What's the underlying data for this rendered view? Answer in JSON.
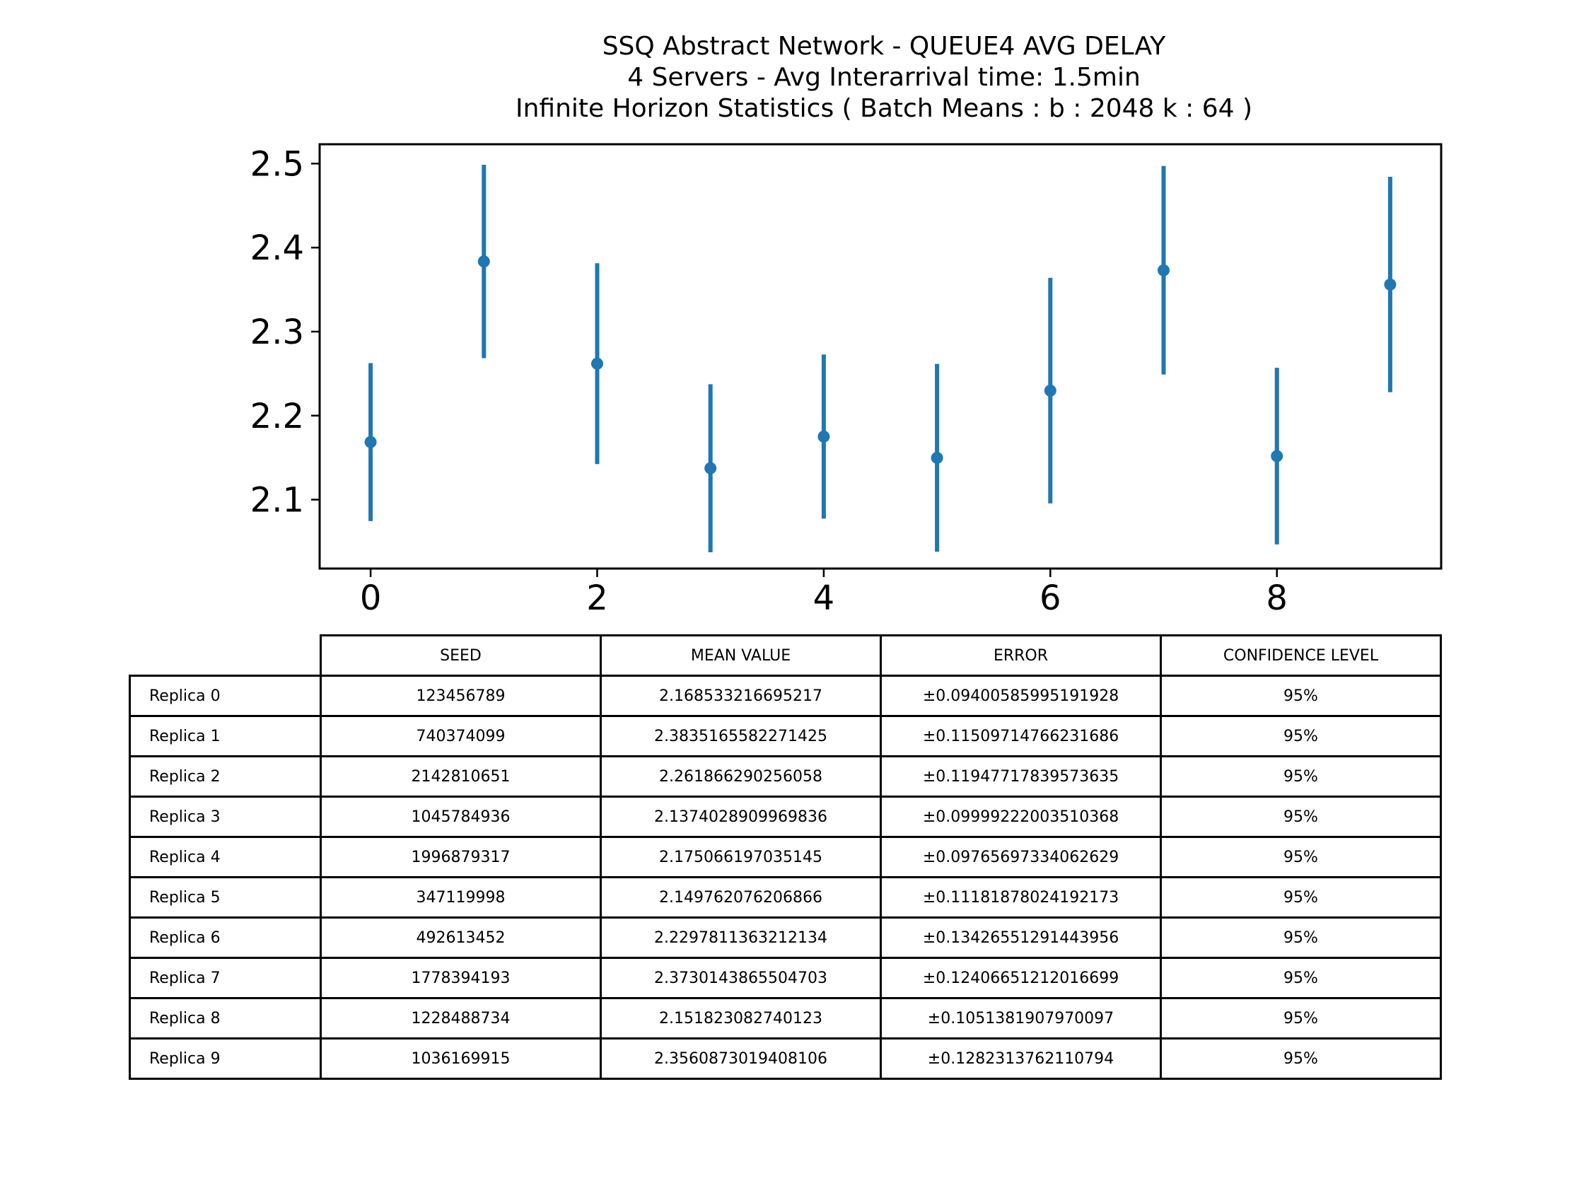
{
  "chart_data": {
    "type": "scatter",
    "title_lines": [
      "SSQ Abstract Network - QUEUE4 AVG DELAY",
      "4 Servers -  Avg Interarrival time: 1.5min",
      "Infinite Horizon Statistics ( Batch Means : b : 2048  k : 64 )"
    ],
    "x": [
      0,
      1,
      2,
      3,
      4,
      5,
      6,
      7,
      8,
      9
    ],
    "y": [
      2.168533216695217,
      2.3835165582271425,
      2.261866290256058,
      2.1374028909969836,
      2.175066197035145,
      2.149762076206866,
      2.2297811363212134,
      2.3730143865504703,
      2.151823082740123,
      2.3560873019408106
    ],
    "yerr": [
      0.09400585995191928,
      0.11509714766231686,
      0.11947717839573635,
      0.09999222003510368,
      0.09765697334062629,
      0.11181878024192173,
      0.13426551291443956,
      0.12406651212016699,
      0.1051381907970097,
      0.1282313762110794
    ],
    "xlim": [
      -0.45,
      9.45
    ],
    "ylim": [
      2.018,
      2.523
    ],
    "xticks": [
      0,
      2,
      4,
      6,
      8
    ],
    "yticks": [
      2.1,
      2.2,
      2.3,
      2.4,
      2.5
    ],
    "xtick_labels": [
      "0",
      "2",
      "4",
      "6",
      "8"
    ],
    "ytick_labels": [
      "2.1",
      "2.2",
      "2.3",
      "2.4",
      "2.5"
    ],
    "series_color": "#1f77b4",
    "grid": false,
    "xlabel": "",
    "ylabel": ""
  },
  "table": {
    "columns": [
      "SEED",
      "MEAN VALUE",
      "ERROR",
      "CONFIDENCE LEVEL"
    ],
    "rows": [
      {
        "label": "Replica 0",
        "seed": "123456789",
        "mean": "2.168533216695217",
        "error": "±0.09400585995191928",
        "confidence": "95%"
      },
      {
        "label": "Replica 1",
        "seed": "740374099",
        "mean": "2.3835165582271425",
        "error": "±0.11509714766231686",
        "confidence": "95%"
      },
      {
        "label": "Replica 2",
        "seed": "2142810651",
        "mean": "2.261866290256058",
        "error": "±0.11947717839573635",
        "confidence": "95%"
      },
      {
        "label": "Replica 3",
        "seed": "1045784936",
        "mean": "2.1374028909969836",
        "error": "±0.09999222003510368",
        "confidence": "95%"
      },
      {
        "label": "Replica 4",
        "seed": "1996879317",
        "mean": "2.175066197035145",
        "error": "±0.09765697334062629",
        "confidence": "95%"
      },
      {
        "label": "Replica 5",
        "seed": "347119998",
        "mean": "2.149762076206866",
        "error": "±0.11181878024192173",
        "confidence": "95%"
      },
      {
        "label": "Replica 6",
        "seed": "492613452",
        "mean": "2.2297811363212134",
        "error": "±0.13426551291443956",
        "confidence": "95%"
      },
      {
        "label": "Replica 7",
        "seed": "1778394193",
        "mean": "2.3730143865504703",
        "error": "±0.12406651212016699",
        "confidence": "95%"
      },
      {
        "label": "Replica 8",
        "seed": "1228488734",
        "mean": "2.151823082740123",
        "error": "±0.1051381907970097",
        "confidence": "95%"
      },
      {
        "label": "Replica 9",
        "seed": "1036169915",
        "mean": "2.3560873019408106",
        "error": "±0.1282313762110794",
        "confidence": "95%"
      }
    ]
  }
}
